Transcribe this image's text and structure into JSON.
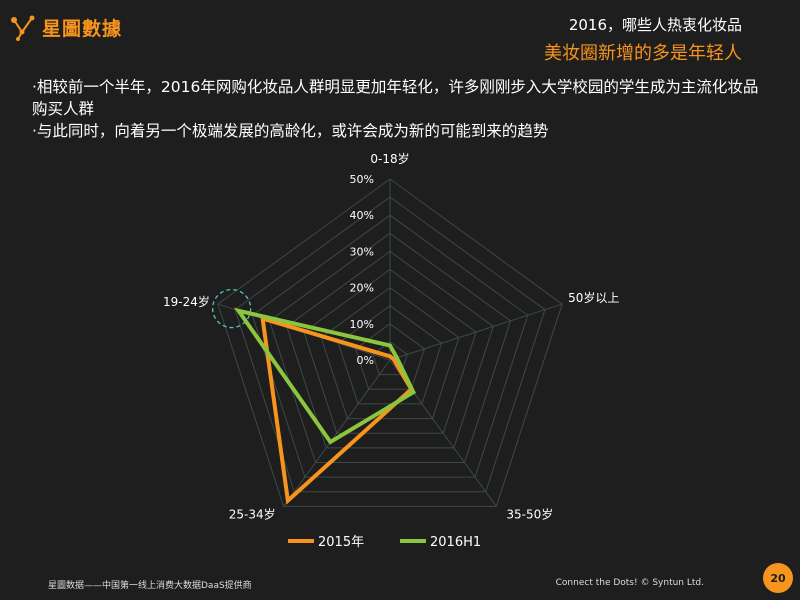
{
  "brand": {
    "name": "星圖數據",
    "accent": "#f7941d",
    "icon": "connected-dots-logo-icon"
  },
  "header": {
    "line1": "2016，哪些人热衷化妆品",
    "line2": "美妆圈新增的多是年轻人"
  },
  "bullets": [
    "·相较前一个半年，2016年网购化妆品人群明显更加年轻化，许多刚刚步入大学校园的学生成为主流化妆品购买人群",
    "·与此同时，向着另一个极端发展的高龄化，或许会成为新的可能到来的趋势"
  ],
  "chart_data": {
    "type": "radar",
    "categories": [
      "0-18岁",
      "50岁以上",
      "35-50岁",
      "25-34岁",
      "19-24岁"
    ],
    "rlim": [
      0,
      50
    ],
    "tick_labels": [
      "0%",
      "10%",
      "20%",
      "30%",
      "40%",
      "50%"
    ],
    "grid": true,
    "legend_position": "bottom",
    "series": [
      {
        "name": "2015年",
        "color": "#f7941d",
        "values": [
          1,
          1,
          10,
          48,
          37
        ]
      },
      {
        "name": "2016H1",
        "color": "#8cc63f",
        "values": [
          4,
          2,
          11,
          28,
          44
        ]
      }
    ],
    "annotation": {
      "type": "dashed-circle",
      "category": "19-24岁",
      "color": "#5bc0be"
    }
  },
  "footer": {
    "left": "星圖数据——中国第一线上消费大数据DaaS提供商",
    "right": "Connect the Dots! © Syntun Ltd.",
    "page": "20"
  }
}
